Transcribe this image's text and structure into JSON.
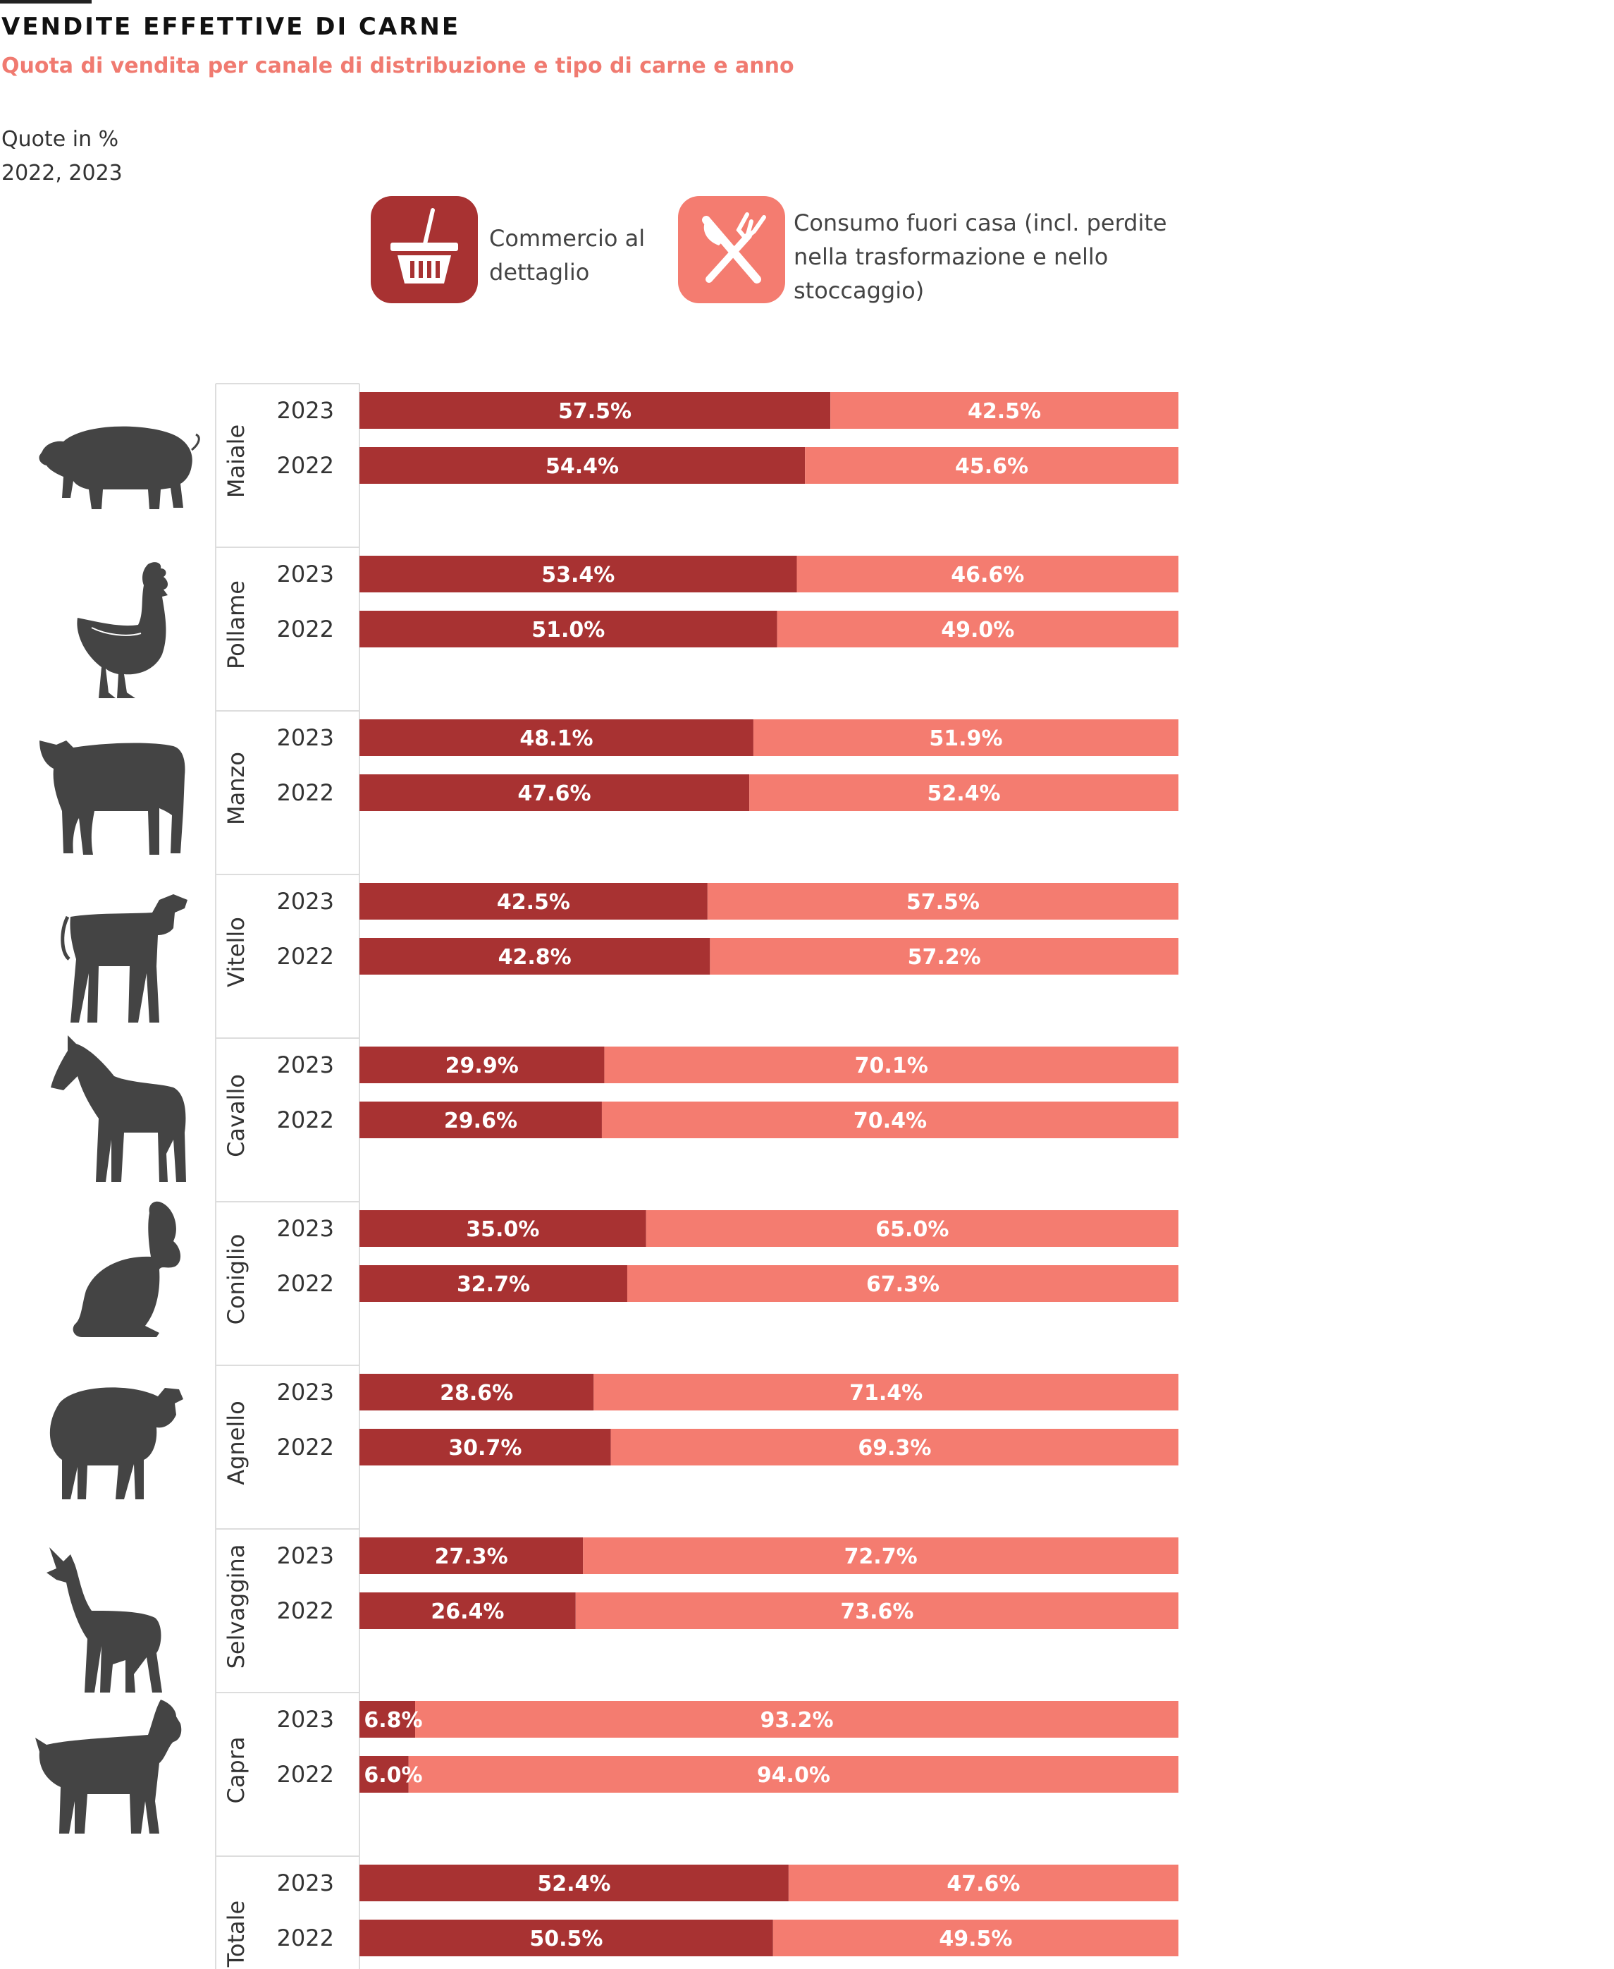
{
  "header": {
    "title": "VENDITE EFFETTIVE DI CARNE",
    "subtitle": "Quota di vendita per canale di distribuzione e tipo di carne e anno",
    "unit_note": "Quote in %",
    "years_note": "2022, 2023"
  },
  "legend": {
    "retail_label": "Commercio al dettaglio",
    "retail_icon": "shopping-basket-icon",
    "retail_color": "#a83232",
    "away_label": "Consumo fuori casa (incl. perdite nella trasformazione e nello stoccaggio)",
    "away_icon": "knife-fork-icon",
    "away_color": "#f47c70"
  },
  "chart_data": {
    "type": "bar",
    "orientation": "horizontal",
    "stacked": true,
    "xlim": [
      0,
      100
    ],
    "groups": [
      {
        "name": "Maiale",
        "icon": "pig-icon",
        "rows": [
          {
            "year": "2023",
            "retail": 57.5,
            "away": 42.5,
            "retail_label": "57.5%",
            "away_label": "42.5%"
          },
          {
            "year": "2022",
            "retail": 54.4,
            "away": 45.6,
            "retail_label": "54.4%",
            "away_label": "45.6%"
          }
        ]
      },
      {
        "name": "Pollame",
        "icon": "chicken-icon",
        "rows": [
          {
            "year": "2023",
            "retail": 53.4,
            "away": 46.6,
            "retail_label": "53.4%",
            "away_label": "46.6%"
          },
          {
            "year": "2022",
            "retail": 51.0,
            "away": 49.0,
            "retail_label": "51.0%",
            "away_label": "49.0%"
          }
        ]
      },
      {
        "name": "Manzo",
        "icon": "cow-icon",
        "rows": [
          {
            "year": "2023",
            "retail": 48.1,
            "away": 51.9,
            "retail_label": "48.1%",
            "away_label": "51.9%"
          },
          {
            "year": "2022",
            "retail": 47.6,
            "away": 52.4,
            "retail_label": "47.6%",
            "away_label": "52.4%"
          }
        ]
      },
      {
        "name": "Vitello",
        "icon": "calf-icon",
        "rows": [
          {
            "year": "2023",
            "retail": 42.5,
            "away": 57.5,
            "retail_label": "42.5%",
            "away_label": "57.5%"
          },
          {
            "year": "2022",
            "retail": 42.8,
            "away": 57.2,
            "retail_label": "42.8%",
            "away_label": "57.2%"
          }
        ]
      },
      {
        "name": "Cavallo",
        "icon": "horse-icon",
        "rows": [
          {
            "year": "2023",
            "retail": 29.9,
            "away": 70.1,
            "retail_label": "29.9%",
            "away_label": "70.1%"
          },
          {
            "year": "2022",
            "retail": 29.6,
            "away": 70.4,
            "retail_label": "29.6%",
            "away_label": "70.4%"
          }
        ]
      },
      {
        "name": "Coniglio",
        "icon": "rabbit-icon",
        "rows": [
          {
            "year": "2023",
            "retail": 35.0,
            "away": 65.0,
            "retail_label": "35.0%",
            "away_label": "65.0%"
          },
          {
            "year": "2022",
            "retail": 32.7,
            "away": 67.3,
            "retail_label": "32.7%",
            "away_label": "67.3%"
          }
        ]
      },
      {
        "name": "Agnello",
        "icon": "sheep-icon",
        "rows": [
          {
            "year": "2023",
            "retail": 28.6,
            "away": 71.4,
            "retail_label": "28.6%",
            "away_label": "71.4%"
          },
          {
            "year": "2022",
            "retail": 30.7,
            "away": 69.3,
            "retail_label": "30.7%",
            "away_label": "69.3%"
          }
        ]
      },
      {
        "name": "Selvaggina",
        "icon": "deer-icon",
        "rows": [
          {
            "year": "2023",
            "retail": 27.3,
            "away": 72.7,
            "retail_label": "27.3%",
            "away_label": "72.7%"
          },
          {
            "year": "2022",
            "retail": 26.4,
            "away": 73.6,
            "retail_label": "26.4%",
            "away_label": "73.6%"
          }
        ]
      },
      {
        "name": "Capra",
        "icon": "goat-icon",
        "rows": [
          {
            "year": "2023",
            "retail": 6.8,
            "away": 93.2,
            "retail_label": "6.8%",
            "away_label": "93.2%"
          },
          {
            "year": "2022",
            "retail": 6.0,
            "away": 94.0,
            "retail_label": "6.0%",
            "away_label": "94.0%"
          }
        ]
      },
      {
        "name": "Totale",
        "icon": "",
        "rows": [
          {
            "year": "2023",
            "retail": 52.4,
            "away": 47.6,
            "retail_label": "52.4%",
            "away_label": "47.6%"
          },
          {
            "year": "2022",
            "retail": 50.5,
            "away": 49.5,
            "retail_label": "50.5%",
            "away_label": "49.5%"
          }
        ]
      }
    ]
  }
}
